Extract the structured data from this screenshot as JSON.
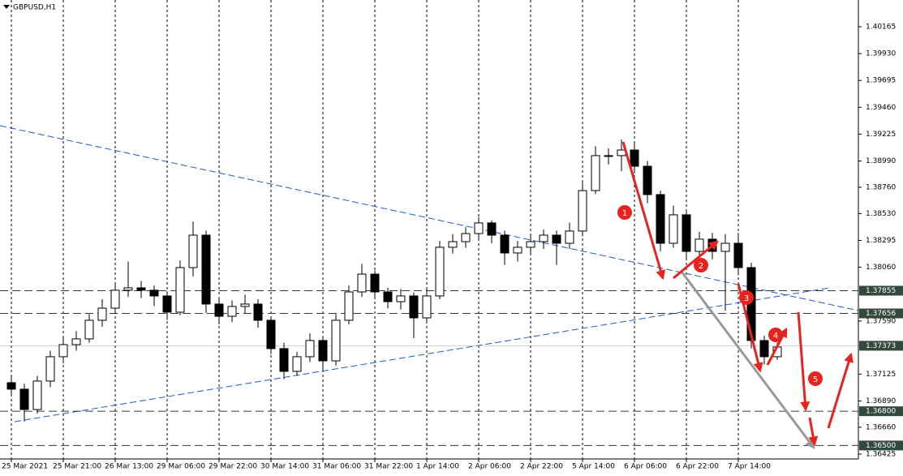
{
  "chart_data": {
    "type": "candlestick",
    "title": "GBPUSD,H1",
    "categories": [
      "25 Mar 2021",
      null,
      null,
      null,
      "25 Mar 21:00",
      null,
      null,
      null,
      "26 Mar 13:00",
      null,
      null,
      null,
      "29 Mar 06:00",
      null,
      null,
      null,
      "29 Mar 22:00",
      null,
      null,
      null,
      "30 Mar 14:00",
      null,
      null,
      null,
      "31 Mar 06:00",
      null,
      null,
      null,
      "31 Mar 22:00",
      null,
      null,
      null,
      "1 Apr 14:00",
      null,
      null,
      null,
      "2 Apr 06:00",
      null,
      null,
      null,
      "2 Apr 22:00",
      null,
      null,
      null,
      "5 Apr 14:00",
      null,
      null,
      null,
      "6 Apr 06:00",
      null,
      null,
      null,
      "6 Apr 22:00",
      null,
      null,
      null,
      "7 Apr 14:00",
      null,
      null,
      null
    ],
    "open": [
      1.3705,
      1.36993,
      1.36815,
      1.37064,
      1.37277,
      1.37383,
      1.37433,
      1.37596,
      1.37702,
      1.37859,
      1.3788,
      1.37859,
      1.37809,
      1.37667,
      1.38057,
      1.38341,
      1.37738,
      1.37631,
      1.37717,
      1.37738,
      1.37596,
      1.37348,
      1.37149,
      1.37277,
      1.37419,
      1.37241,
      1.37596,
      1.37844,
      1.38,
      1.37844,
      1.37759,
      1.37809,
      1.37617,
      1.37809,
      1.38235,
      1.38284,
      1.38355,
      1.38448,
      1.38341,
      1.38185,
      1.38235,
      1.38284,
      1.38341,
      1.3827,
      1.38377,
      1.38731,
      1.39037,
      1.39037,
      1.39086,
      1.38944,
      1.38696,
      1.3827,
      1.38519,
      1.38199,
      1.38306,
      1.38199,
      1.3827,
      1.38057,
      1.37419,
      1.37277
    ],
    "high": [
      1.3712,
      1.3704,
      1.3711,
      1.3733,
      1.3745,
      1.375,
      1.3765,
      1.3778,
      1.3793,
      1.3811,
      1.3794,
      1.379,
      1.3785,
      1.3812,
      1.3846,
      1.3838,
      1.378,
      1.3777,
      1.3782,
      1.3778,
      1.3762,
      1.374,
      1.3732,
      1.3748,
      1.3746,
      1.3765,
      1.379,
      1.3809,
      1.3803,
      1.3788,
      1.3787,
      1.3784,
      1.3787,
      1.3829,
      1.3835,
      1.3841,
      1.385,
      1.3847,
      1.3838,
      1.3829,
      1.3835,
      1.3839,
      1.3838,
      1.3845,
      1.388,
      1.3912,
      1.391,
      1.39178,
      1.3915,
      1.3899,
      1.3873,
      1.386,
      1.3856,
      1.3837,
      1.3836,
      1.3835,
      1.3836,
      1.381,
      1.3746,
      1.374
    ],
    "low": [
      1.3693,
      1.3671,
      1.3678,
      1.3701,
      1.3722,
      1.3733,
      1.374,
      1.3754,
      1.3765,
      1.378,
      1.3779,
      1.3772,
      1.376,
      1.3764,
      1.3798,
      1.3766,
      1.3756,
      1.3758,
      1.3766,
      1.3753,
      1.373,
      1.3708,
      1.3711,
      1.3723,
      1.3716,
      1.372,
      1.3756,
      1.378,
      1.3778,
      1.377,
      1.3769,
      1.3744,
      1.3758,
      1.3778,
      1.3818,
      1.3823,
      1.383,
      1.3827,
      1.3808,
      1.3811,
      1.3817,
      1.3822,
      1.3808,
      1.3822,
      1.3833,
      1.387,
      1.3896,
      1.389,
      1.3888,
      1.3862,
      1.382,
      1.3823,
      1.3813,
      1.3815,
      1.3813,
      1.3768,
      1.3799,
      1.3735,
      1.3721,
      1.3725
    ],
    "close": [
      1.36993,
      1.36815,
      1.37064,
      1.37277,
      1.37383,
      1.37433,
      1.37596,
      1.37702,
      1.37859,
      1.3788,
      1.37859,
      1.37809,
      1.37667,
      1.38057,
      1.38341,
      1.37738,
      1.37631,
      1.37717,
      1.37738,
      1.37596,
      1.37348,
      1.37149,
      1.37277,
      1.37419,
      1.37241,
      1.37596,
      1.37844,
      1.38,
      1.37844,
      1.37759,
      1.37809,
      1.37617,
      1.37809,
      1.38235,
      1.38284,
      1.38355,
      1.38448,
      1.38341,
      1.38185,
      1.38235,
      1.38284,
      1.38341,
      1.3827,
      1.38377,
      1.38731,
      1.39037,
      1.39037,
      1.39086,
      1.38944,
      1.38696,
      1.3827,
      1.38519,
      1.38199,
      1.38306,
      1.38199,
      1.3827,
      1.38057,
      1.37419,
      1.37277,
      1.37362
    ],
    "up_color": "#ffffff",
    "down_color": "#000000",
    "ylim": [
      1.36368,
      1.40399
    ],
    "yticks": [
      1.40165,
      {
        "value": 1.3993,
        "label": "1.39930"
      },
      1.39695,
      {
        "value": 1.3946,
        "label": "1.39460"
      },
      1.39225,
      {
        "value": 1.3899,
        "label": "1.38990"
      },
      {
        "value": 1.3876,
        "label": "1.38760"
      },
      {
        "value": 1.3853,
        "label": "1.38530"
      },
      1.38295,
      {
        "value": 1.3806,
        "label": "1.38060"
      },
      {
        "value": 1.3759,
        "label": "1.37590"
      },
      1.37125,
      {
        "value": 1.3689,
        "label": "1.36890"
      },
      {
        "value": 1.3666,
        "label": "1.36660"
      },
      1.36425
    ],
    "grid": "vertical",
    "levels": [
      1.37855,
      1.37656,
      {
        "value": 1.368,
        "label": "1.36800"
      },
      {
        "value": 1.365,
        "label": "1.36500"
      }
    ],
    "last_price": 1.37373,
    "annotations": [
      "1",
      "2",
      "3",
      "4",
      "5"
    ]
  }
}
